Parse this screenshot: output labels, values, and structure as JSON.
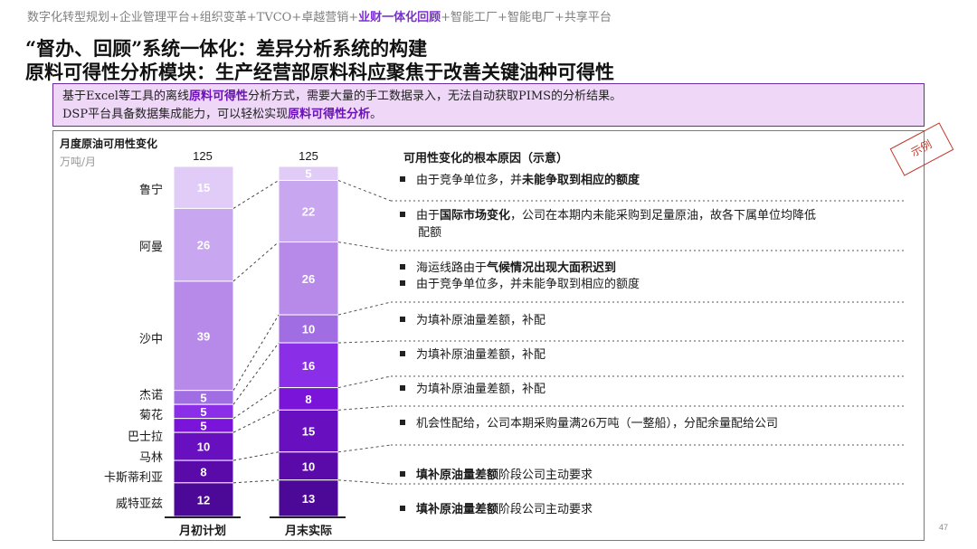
{
  "breadcrumb": {
    "before": "数字化转型规划+企业管理平台+组织变革+TVCO+卓越营销+",
    "active": "业财一体化回顾",
    "after": "+智能工厂+智能电厂+共享平台"
  },
  "title_line1": "“督办、回顾”系统一体化：差异分析系统的构建",
  "title_line2": "原料可得性分析模块：生产经营部原料科应聚焦于改善关键油种可得性",
  "callout": {
    "line1_a": "基于Excel等工具的离线",
    "line1_hl": "原料可得性",
    "line1_b": "分析方式，需要大量的手工数据录入，无法自动获取PIMS的分析结果。",
    "line2_a": "DSP平台具备数据集成能力，可以轻松实现",
    "line2_hl": "原料可得性分析",
    "line2_b": "。"
  },
  "stamp": "示例",
  "page_number": "47",
  "chart_data": {
    "type": "bar",
    "title": "月度原油可用性变化",
    "ylabel": "万吨/月",
    "categories": [
      "月初计划",
      "月末实际"
    ],
    "totals": [
      125,
      125
    ],
    "ylim": [
      0,
      125
    ],
    "series_names": [
      "鲁宁",
      "阿曼",
      "沙中",
      "杰诺",
      "菊花",
      "巴士拉",
      "马林",
      "卡斯蒂利亚",
      "威特亚兹"
    ],
    "series_colors": [
      "#e0ccf6",
      "#c8a6f0",
      "#b78aea",
      "#a06ee2",
      "#8a2ee8",
      "#7a14d8",
      "#6810c0",
      "#5a0aa8",
      "#4c0896"
    ],
    "stacks": [
      {
        "name": "月初计划",
        "values": [
          15,
          26,
          39,
          5,
          5,
          5,
          10,
          8,
          12
        ]
      },
      {
        "name": "月末实际",
        "values": [
          5,
          22,
          26,
          10,
          16,
          8,
          15,
          10,
          13
        ]
      }
    ]
  },
  "reasons": {
    "header": "可用性变化的根本原因（示意）",
    "items": [
      {
        "parts": [
          {
            "t": "由于竞争单位多，并"
          },
          {
            "t": "未能争取到相应的额度",
            "b": true
          }
        ]
      },
      {
        "parts": [
          {
            "t": "由于"
          },
          {
            "t": "国际市场变化",
            "b": true
          },
          {
            "t": "，公司在本期内未能采购到足量原油，故各下属单位均降低"
          }
        ],
        "cont": "配额"
      },
      {
        "parts": [
          {
            "t": "海运线路由于"
          },
          {
            "t": "气候情况出现大面积迟到",
            "b": true
          }
        ]
      },
      {
        "parts": [
          {
            "t": "由于竞争单位多，并未能争取到相应的额度"
          }
        ]
      },
      {
        "parts": [
          {
            "t": "为填补原油量差额，补配"
          }
        ]
      },
      {
        "parts": [
          {
            "t": "为填补原油量差额，补配"
          }
        ]
      },
      {
        "parts": [
          {
            "t": "为填补原油量差额，补配"
          }
        ]
      },
      {
        "parts": [
          {
            "t": "机会性配给，公司本期采购量满26万吨（一整船），分配余量配给公司"
          }
        ]
      },
      {
        "parts": [
          {
            "t": "填补原油量差额",
            "b": true
          },
          {
            "t": "阶段公司主动要求"
          }
        ]
      },
      {
        "parts": [
          {
            "t": "填补原油量差额",
            "b": true
          },
          {
            "t": "阶段公司主动要求"
          }
        ]
      }
    ]
  }
}
